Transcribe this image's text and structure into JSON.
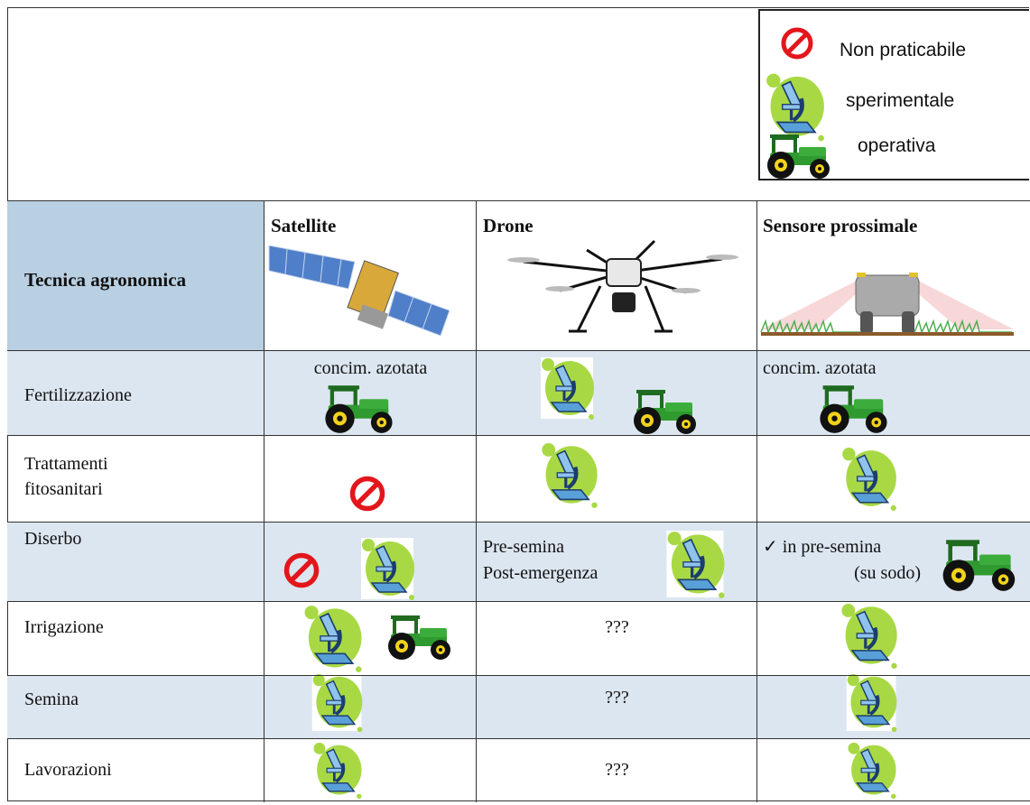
{
  "legend": {
    "items": [
      "Non praticabile",
      "sperimentale",
      "operativa"
    ]
  },
  "table": {
    "header": {
      "first": "Tecnica agronomica",
      "columns": [
        "Satellite",
        "Drone",
        "Sensore prossimale"
      ]
    },
    "rows": [
      {
        "label": "Fertilizzazione",
        "satellite": "concim. azotata",
        "sensor": "concim. azotata"
      },
      {
        "label": "Trattamenti fitosanitari"
      },
      {
        "label": "Diserbo",
        "drone": [
          "Pre-semina",
          "Post-emergenza"
        ],
        "sensor": [
          "✓ in pre-semina",
          "(su sodo)"
        ]
      },
      {
        "label": "Irrigazione",
        "drone": "???"
      },
      {
        "label": "Semina",
        "drone": "???"
      },
      {
        "label": "Lavorazioni",
        "drone": "???"
      }
    ]
  }
}
